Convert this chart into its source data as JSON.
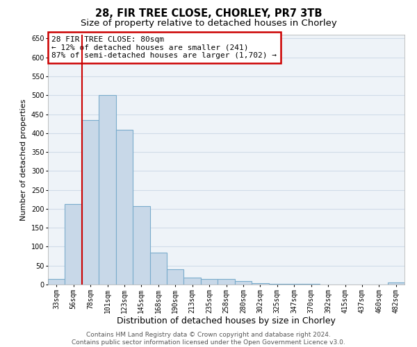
{
  "title1": "28, FIR TREE CLOSE, CHORLEY, PR7 3TB",
  "title2": "Size of property relative to detached houses in Chorley",
  "xlabel": "Distribution of detached houses by size in Chorley",
  "ylabel": "Number of detached properties",
  "categories": [
    "33sqm",
    "56sqm",
    "78sqm",
    "101sqm",
    "123sqm",
    "145sqm",
    "168sqm",
    "190sqm",
    "213sqm",
    "235sqm",
    "258sqm",
    "280sqm",
    "302sqm",
    "325sqm",
    "347sqm",
    "370sqm",
    "392sqm",
    "415sqm",
    "437sqm",
    "460sqm",
    "482sqm"
  ],
  "values": [
    15,
    213,
    435,
    500,
    408,
    207,
    84,
    40,
    18,
    15,
    15,
    10,
    4,
    1,
    1,
    1,
    0,
    0,
    0,
    0,
    5
  ],
  "bar_color": "#c8d8e8",
  "bar_edge_color": "#7aaccc",
  "bar_linewidth": 0.8,
  "vline_x": 1.5,
  "vline_color": "#cc0000",
  "annotation_text_line1": "28 FIR TREE CLOSE: 80sqm",
  "annotation_text_line2": "← 12% of detached houses are smaller (241)",
  "annotation_text_line3": "87% of semi-detached houses are larger (1,702) →",
  "annotation_box_color": "#cc0000",
  "annotation_bg": "white",
  "ylim": [
    0,
    660
  ],
  "yticks": [
    0,
    50,
    100,
    150,
    200,
    250,
    300,
    350,
    400,
    450,
    500,
    550,
    600,
    650
  ],
  "grid_color": "#d0dce8",
  "background_color": "#eef3f8",
  "footer": "Contains HM Land Registry data © Crown copyright and database right 2024.\nContains public sector information licensed under the Open Government Licence v3.0.",
  "title1_fontsize": 10.5,
  "title2_fontsize": 9.5,
  "xlabel_fontsize": 9,
  "ylabel_fontsize": 8,
  "tick_fontsize": 7,
  "annotation_fontsize": 8,
  "footer_fontsize": 6.5
}
